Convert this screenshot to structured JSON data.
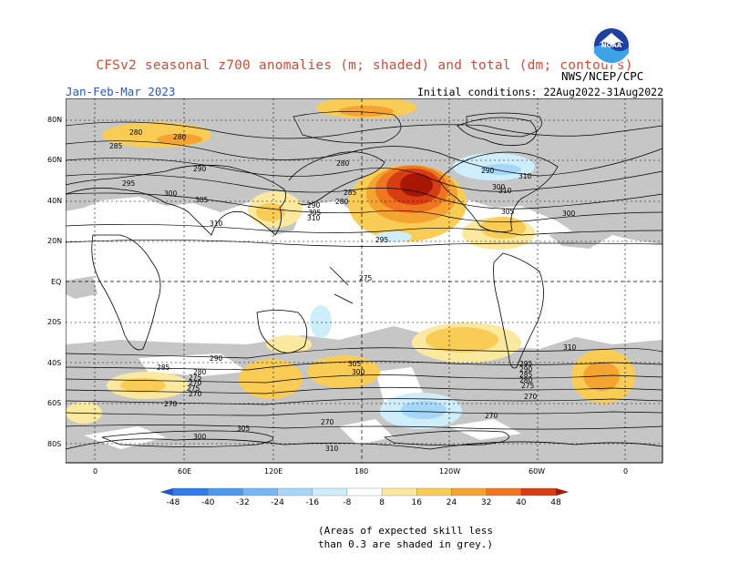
{
  "title": "CFSv2 seasonal z700 anomalies (m; shaded) and total (dm; contours)",
  "period": "Jan-Feb-Mar 2023",
  "agency": "NWS/NCEP/CPC",
  "init": "Initial conditions: 22Aug2022-31Aug2022",
  "logo": {
    "text": "NOAA"
  },
  "note": [
    "(Areas of expected skill less",
    "than 0.3 are shaded in grey.)"
  ],
  "axes": {
    "lat": [
      "80N",
      "60N",
      "40N",
      "20N",
      "EQ",
      "20S",
      "40S",
      "60S",
      "80S"
    ],
    "lon": [
      "0",
      "60E",
      "120E",
      "180",
      "120W",
      "60W",
      "0"
    ]
  },
  "colorbar": {
    "ticks": [
      "-48",
      "-40",
      "-32",
      "-24",
      "-16",
      "-8",
      "8",
      "16",
      "24",
      "32",
      "40",
      "48"
    ],
    "colors": [
      "#1a56d6",
      "#2f7be8",
      "#4a98f0",
      "#76b7f5",
      "#a6d6f8",
      "#cfeefc",
      "#ffffff",
      "#fbe9a0",
      "#f9cc55",
      "#f5a331",
      "#ef7520",
      "#d73d12",
      "#a81606"
    ]
  },
  "contour_labels": [
    {
      "text": "280"
    },
    {
      "text": "280"
    },
    {
      "text": "285"
    },
    {
      "text": "290"
    },
    {
      "text": "295"
    },
    {
      "text": "300"
    },
    {
      "text": "305"
    },
    {
      "text": "310"
    },
    {
      "text": "275"
    },
    {
      "text": "280"
    },
    {
      "text": "285"
    },
    {
      "text": "280"
    },
    {
      "text": "290"
    },
    {
      "text": "305"
    },
    {
      "text": "310"
    },
    {
      "text": "290"
    },
    {
      "text": "300"
    },
    {
      "text": "310"
    },
    {
      "text": "310"
    },
    {
      "text": "305"
    },
    {
      "text": "300"
    },
    {
      "text": "295"
    },
    {
      "text": "290"
    },
    {
      "text": "285"
    },
    {
      "text": "280"
    },
    {
      "text": "275"
    },
    {
      "text": "270"
    },
    {
      "text": "275"
    },
    {
      "text": "270"
    },
    {
      "text": "270"
    },
    {
      "text": "310"
    },
    {
      "text": "305"
    },
    {
      "text": "300"
    },
    {
      "text": "310"
    },
    {
      "text": "305"
    },
    {
      "text": "300"
    },
    {
      "text": "295"
    },
    {
      "text": "290"
    },
    {
      "text": "285"
    },
    {
      "text": "280"
    },
    {
      "text": "275"
    },
    {
      "text": "270"
    },
    {
      "text": "270"
    },
    {
      "text": "270"
    }
  ]
}
